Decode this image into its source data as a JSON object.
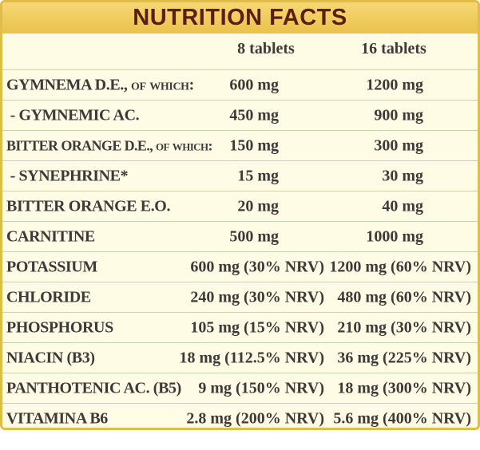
{
  "title": "NUTRITION FACTS",
  "columns": [
    "8 tablets",
    "16 tablets"
  ],
  "rows": [
    {
      "name": "GYMNEMA D.E., of which:",
      "v1": "600 mg",
      "v2": "1200 mg"
    },
    {
      "name": " - GYMNEMIC AC.",
      "v1": "450 mg",
      "v2": "900 mg"
    },
    {
      "name": "BITTER ORANGE D.E., of which:",
      "v1": "150 mg",
      "v2": "300 mg"
    },
    {
      "name": " - SYNEPHRINE*",
      "v1": "15 mg",
      "v2": "30 mg"
    },
    {
      "name": "BITTER ORANGE E.O.",
      "v1": "20 mg",
      "v2": "40 mg"
    },
    {
      "name": "CARNITINE",
      "v1": "500 mg",
      "v2": "1000 mg"
    },
    {
      "name": "POTASSIUM",
      "v1": "600 mg (30% NRV)",
      "v2": "1200 mg (60% NRV)"
    },
    {
      "name": "CHLORIDE",
      "v1": "240 mg (30% NRV)",
      "v2": "480 mg (60% NRV)"
    },
    {
      "name": "PHOSPHORUS",
      "v1": "105 mg (15% NRV)",
      "v2": "210 mg (30% NRV)"
    },
    {
      "name": "NIACIN (B3)",
      "v1": "18 mg (112.5% NRV)",
      "v2": "36 mg (225% NRV)"
    },
    {
      "name": "PANTHOTENIC AC. (B5)",
      "v1": "9 mg (150% NRV)",
      "v2": "18 mg (300% NRV)"
    },
    {
      "name": "VITAMINA B6",
      "v1": "2.8 mg (200% NRV)",
      "v2": "5.6 mg (400% NRV)"
    }
  ],
  "colors": {
    "title_bar": "#eec856",
    "title_text": "#5a1e14",
    "border": "#e0bc4a",
    "background": "#fffce6",
    "row_divider": "#eacf77",
    "body_text": "#3f3937"
  }
}
